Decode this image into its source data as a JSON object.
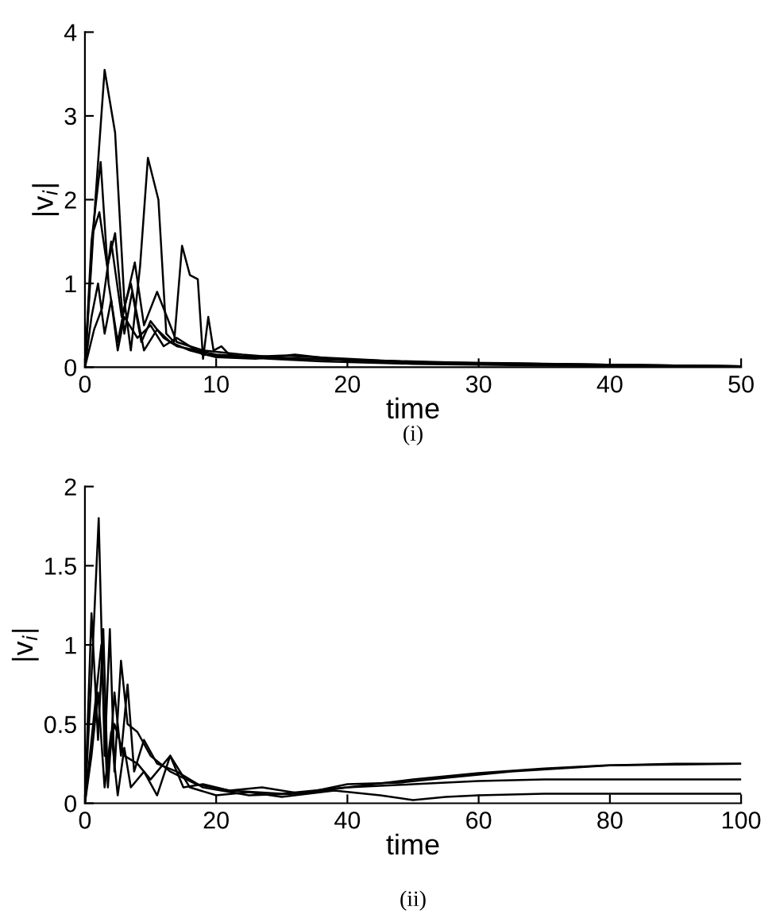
{
  "chart_data": [
    {
      "type": "line",
      "xlabel": "time",
      "ylabel": "|v$_{i}$|",
      "annotations": [
        "(i)"
      ],
      "xlim": [
        0,
        50
      ],
      "ylim": [
        0,
        4
      ],
      "xticks": [
        0,
        10,
        20,
        30,
        40,
        50
      ],
      "yticks": [
        0,
        1,
        2,
        3,
        4
      ],
      "grid": false,
      "legend": false,
      "series": [
        {
          "color": "#000000",
          "x": [
            0,
            0.8,
            1.5,
            2.3,
            3,
            3.5,
            4.2,
            4.8,
            5.6,
            6.2,
            6.8,
            7.4,
            8,
            8.6,
            9,
            9.4,
            9.8,
            10.4,
            11,
            12,
            14,
            18,
            25,
            35,
            50
          ],
          "values": [
            0,
            2,
            3.55,
            2.8,
            0.8,
            0.2,
            1.2,
            2.5,
            2.0,
            0.4,
            0.3,
            1.45,
            1.1,
            1.05,
            0.1,
            0.6,
            0.2,
            0.25,
            0.15,
            0.12,
            0.1,
            0.07,
            0.04,
            0.02,
            0.01
          ]
        },
        {
          "color": "#000000",
          "x": [
            0,
            0.5,
            1.2,
            1.8,
            2.5,
            3,
            3.8,
            4.5,
            5.5,
            7,
            9,
            12,
            16,
            22,
            30,
            50
          ],
          "values": [
            0,
            1.5,
            2.45,
            1.0,
            0.3,
            0.7,
            1.25,
            0.5,
            0.9,
            0.3,
            0.2,
            0.15,
            0.1,
            0.08,
            0.04,
            0.01
          ]
        },
        {
          "color": "#000000",
          "x": [
            0,
            0.6,
            1.1,
            1.7,
            2.3,
            3,
            3.6,
            4.3,
            5,
            6,
            7,
            8.5,
            10,
            13,
            17,
            22,
            30,
            40,
            50
          ],
          "values": [
            0,
            1.6,
            1.85,
            1.2,
            1.6,
            0.4,
            0.9,
            0.3,
            0.55,
            0.35,
            0.25,
            0.2,
            0.15,
            0.12,
            0.1,
            0.08,
            0.05,
            0.03,
            0.01
          ]
        },
        {
          "color": "#000000",
          "x": [
            0,
            0.5,
            1,
            1.5,
            2,
            2.5,
            3,
            4,
            5,
            6,
            7,
            9,
            12,
            15,
            20,
            25,
            32,
            40,
            50
          ],
          "values": [
            0,
            0.6,
            1.0,
            0.4,
            0.8,
            0.2,
            0.6,
            0.35,
            0.5,
            0.25,
            0.35,
            0.15,
            0.12,
            0.14,
            0.1,
            0.06,
            0.05,
            0.03,
            0.01
          ]
        },
        {
          "color": "#000000",
          "x": [
            0,
            0.7,
            1.3,
            2,
            2.8,
            3.5,
            4.5,
            5.5,
            6.5,
            8,
            10,
            13,
            16,
            20,
            27,
            35,
            50
          ],
          "values": [
            0,
            0.45,
            0.7,
            1.5,
            0.6,
            1.0,
            0.2,
            0.45,
            0.3,
            0.2,
            0.12,
            0.1,
            0.15,
            0.08,
            0.05,
            0.04,
            0.01
          ]
        }
      ]
    },
    {
      "type": "line",
      "xlabel": "time",
      "ylabel": "|v$_{i}$|",
      "annotations": [
        "(ii)"
      ],
      "xlim": [
        0,
        100
      ],
      "ylim": [
        0,
        2
      ],
      "xticks": [
        0,
        20,
        40,
        60,
        80,
        100
      ],
      "yticks": [
        0,
        0.5,
        1,
        1.5,
        2
      ],
      "grid": false,
      "legend": false,
      "series": [
        {
          "color": "#000000",
          "x": [
            0,
            1,
            2.1,
            3,
            3.8,
            4.5,
            5.5,
            6.5,
            8,
            10,
            13,
            17,
            22,
            30,
            40,
            50,
            60,
            70,
            80,
            90,
            100
          ],
          "values": [
            0,
            0.8,
            1.8,
            0.3,
            1.1,
            0.2,
            0.9,
            0.5,
            0.45,
            0.3,
            0.2,
            0.12,
            0.08,
            0.06,
            0.1,
            0.15,
            0.19,
            0.22,
            0.24,
            0.25,
            0.25
          ]
        },
        {
          "color": "#000000",
          "x": [
            0,
            1,
            2,
            2.8,
            3.5,
            4.5,
            5.5,
            6.5,
            7.5,
            9,
            11,
            14,
            18,
            25,
            32,
            40,
            50,
            60,
            70,
            80,
            90,
            100
          ],
          "values": [
            0,
            1.2,
            0.4,
            1.1,
            0.1,
            0.7,
            0.3,
            0.75,
            0.2,
            0.4,
            0.25,
            0.2,
            0.1,
            0.05,
            0.06,
            0.1,
            0.12,
            0.14,
            0.15,
            0.15,
            0.15,
            0.15
          ]
        },
        {
          "color": "#000000",
          "x": [
            0,
            1.5,
            2.5,
            3.3,
            4.5,
            6,
            8,
            10,
            13,
            16,
            20,
            25,
            30,
            38,
            45,
            50,
            55,
            60,
            70,
            80,
            100
          ],
          "values": [
            0,
            0.6,
            1.0,
            0.2,
            0.5,
            0.3,
            0.25,
            0.15,
            0.3,
            0.1,
            0.05,
            0.07,
            0.04,
            0.08,
            0.05,
            0.02,
            0.04,
            0.05,
            0.06,
            0.06,
            0.06
          ]
        },
        {
          "color": "#000000",
          "x": [
            0,
            1,
            2,
            3,
            4,
            5,
            6,
            7,
            9,
            11,
            13,
            15,
            18,
            22,
            27,
            33,
            40,
            48,
            55,
            65,
            80,
            100
          ],
          "values": [
            0,
            0.3,
            0.7,
            0.1,
            0.45,
            0.05,
            0.35,
            0.1,
            0.2,
            0.05,
            0.3,
            0.1,
            0.12,
            0.08,
            0.1,
            0.06,
            0.12,
            0.13,
            0.16,
            0.2,
            0.24,
            0.25
          ]
        }
      ]
    }
  ]
}
